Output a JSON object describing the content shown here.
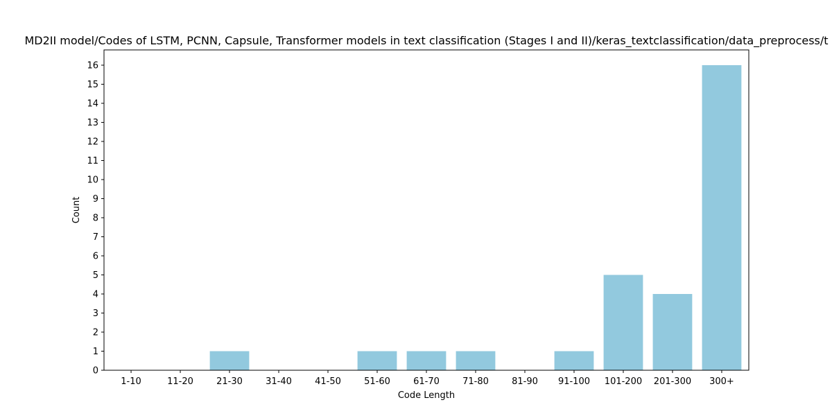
{
  "chart_data": {
    "type": "bar",
    "title": "MD2II model/Codes of LSTM, PCNN, Capsule, Transformer models in text classification (Stages I and II)/keras_textclassification/data_preprocess/t",
    "xlabel": "Code Length",
    "ylabel": "Count",
    "categories": [
      "1-10",
      "11-20",
      "21-30",
      "31-40",
      "41-50",
      "51-60",
      "61-70",
      "71-80",
      "81-90",
      "91-100",
      "101-200",
      "201-300",
      "300+"
    ],
    "values": [
      0,
      0,
      1,
      0,
      0,
      1,
      1,
      1,
      0,
      1,
      5,
      4,
      16
    ],
    "ylim": [
      0,
      16.8
    ],
    "yticks": [
      0,
      1,
      2,
      3,
      4,
      5,
      6,
      7,
      8,
      9,
      10,
      11,
      12,
      13,
      14,
      15,
      16
    ],
    "grid": false,
    "bar_color": "#92c9de"
  }
}
